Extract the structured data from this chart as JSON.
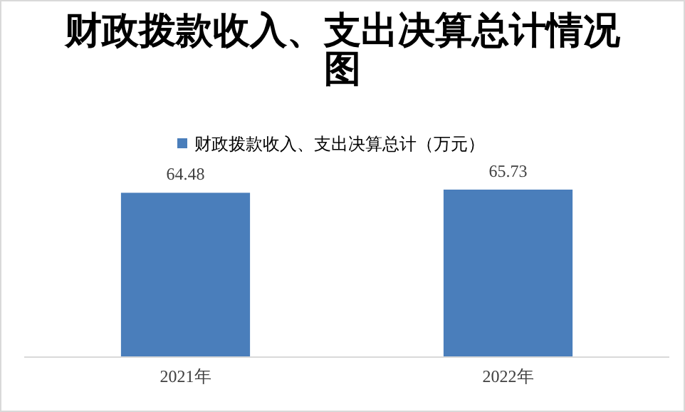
{
  "chart_data": {
    "type": "bar",
    "title": "财政拨款收入、支出决算总计情况图",
    "categories": [
      "2021年",
      "2022年"
    ],
    "series": [
      {
        "name": "财政拨款收入、支出决算总计（万元）",
        "color": "#4a7ebb",
        "values": [
          64.48,
          65.73
        ]
      }
    ],
    "tick_labels": "x",
    "data_labels": true,
    "legend": "top"
  }
}
